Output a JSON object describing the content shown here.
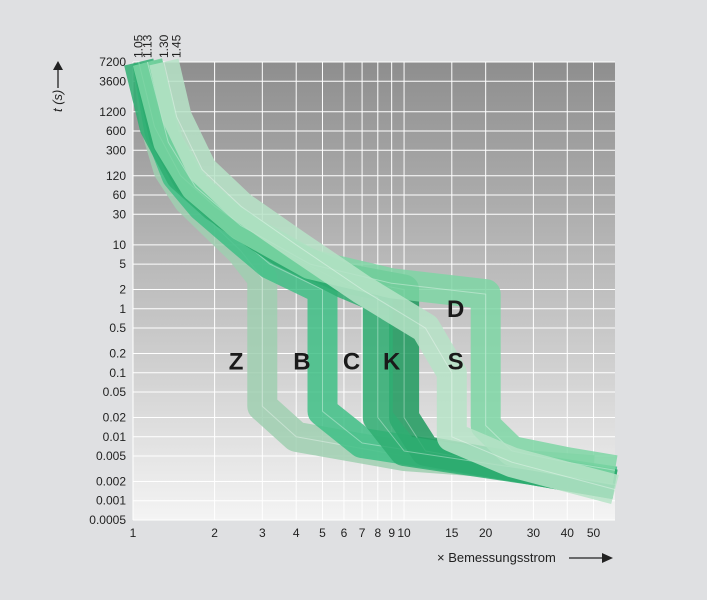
{
  "chart_data": {
    "type": "line",
    "title": "",
    "xlabel": "× Bemessungsstrom",
    "ylabel": "t (s)",
    "x_scale": "log",
    "y_scale": "log",
    "xlim": [
      1,
      60
    ],
    "ylim": [
      0.0005,
      7200
    ],
    "grid": true,
    "x_ticks": [
      1,
      2,
      3,
      4,
      5,
      6,
      7,
      8,
      9,
      10,
      15,
      20,
      30,
      40,
      50
    ],
    "y_ticks": [
      7200,
      3600,
      1200,
      600,
      300,
      120,
      60,
      30,
      10,
      5,
      2,
      1,
      0.5,
      0.2,
      0.1,
      0.05,
      0.02,
      0.01,
      0.005,
      0.002,
      0.001,
      0.0005
    ],
    "top_markers": [
      "1.05",
      "1.13",
      "1.30",
      "1.45"
    ],
    "series": [
      {
        "name": "Z",
        "color": "#9fcfb0",
        "values": [
          {
            "x": 1.13,
            "y": 7200
          },
          {
            "x": 1.2,
            "y": 800
          },
          {
            "x": 1.35,
            "y": 150
          },
          {
            "x": 1.6,
            "y": 50
          },
          {
            "x": 2.0,
            "y": 20
          },
          {
            "x": 2.5,
            "y": 8
          },
          {
            "x": 3.0,
            "y": 3
          },
          {
            "x": 3.0,
            "y": 0.03
          },
          {
            "x": 4,
            "y": 0.01
          },
          {
            "x": 10,
            "y": 0.005
          },
          {
            "x": 50,
            "y": 0.003
          }
        ]
      },
      {
        "name": "B",
        "color": "#3fbf86",
        "values": [
          {
            "x": 1.13,
            "y": 7200
          },
          {
            "x": 1.25,
            "y": 600
          },
          {
            "x": 1.45,
            "y": 120
          },
          {
            "x": 1.8,
            "y": 40
          },
          {
            "x": 2.5,
            "y": 12
          },
          {
            "x": 3.2,
            "y": 5
          },
          {
            "x": 5.0,
            "y": 2
          },
          {
            "x": 5.0,
            "y": 0.025
          },
          {
            "x": 7,
            "y": 0.008
          },
          {
            "x": 20,
            "y": 0.004
          },
          {
            "x": 60,
            "y": 0.002
          }
        ]
      },
      {
        "name": "C",
        "color": "#1f9a5e",
        "values": [
          {
            "x": 1.13,
            "y": 7200
          },
          {
            "x": 1.3,
            "y": 500
          },
          {
            "x": 1.6,
            "y": 100
          },
          {
            "x": 2.2,
            "y": 30
          },
          {
            "x": 3.5,
            "y": 8
          },
          {
            "x": 6.0,
            "y": 3
          },
          {
            "x": 10.0,
            "y": 2
          },
          {
            "x": 10.0,
            "y": 0.02
          },
          {
            "x": 12,
            "y": 0.006
          },
          {
            "x": 30,
            "y": 0.003
          },
          {
            "x": 60,
            "y": 0.0018
          }
        ]
      },
      {
        "name": "K",
        "color": "#2fae72",
        "values": [
          {
            "x": 1.05,
            "y": 7200
          },
          {
            "x": 1.2,
            "y": 700
          },
          {
            "x": 1.5,
            "y": 120
          },
          {
            "x": 2.0,
            "y": 40
          },
          {
            "x": 3.5,
            "y": 8
          },
          {
            "x": 6.0,
            "y": 2.5
          },
          {
            "x": 8.0,
            "y": 1.5
          },
          {
            "x": 8.0,
            "y": 0.02
          },
          {
            "x": 10,
            "y": 0.006
          },
          {
            "x": 30,
            "y": 0.003
          },
          {
            "x": 60,
            "y": 0.0018
          }
        ]
      },
      {
        "name": "D",
        "color": "#7ed6a4",
        "values": [
          {
            "x": 1.13,
            "y": 7200
          },
          {
            "x": 1.35,
            "y": 400
          },
          {
            "x": 1.7,
            "y": 80
          },
          {
            "x": 2.5,
            "y": 20
          },
          {
            "x": 4.5,
            "y": 5
          },
          {
            "x": 9.0,
            "y": 2.5
          },
          {
            "x": 20.0,
            "y": 1.7
          },
          {
            "x": 20.0,
            "y": 0.015
          },
          {
            "x": 25,
            "y": 0.006
          },
          {
            "x": 40,
            "y": 0.004
          },
          {
            "x": 60,
            "y": 0.003
          }
        ]
      },
      {
        "name": "S",
        "color": "#b6e3c7",
        "values": [
          {
            "x": 1.3,
            "y": 7200
          },
          {
            "x": 1.45,
            "y": 1000
          },
          {
            "x": 1.8,
            "y": 150
          },
          {
            "x": 2.5,
            "y": 40
          },
          {
            "x": 4.0,
            "y": 10
          },
          {
            "x": 7.0,
            "y": 2
          },
          {
            "x": 12.0,
            "y": 0.5
          },
          {
            "x": 15.0,
            "y": 0.1
          },
          {
            "x": 15.0,
            "y": 0.01
          },
          {
            "x": 25,
            "y": 0.004
          },
          {
            "x": 60,
            "y": 0.0015
          }
        ]
      }
    ]
  }
}
